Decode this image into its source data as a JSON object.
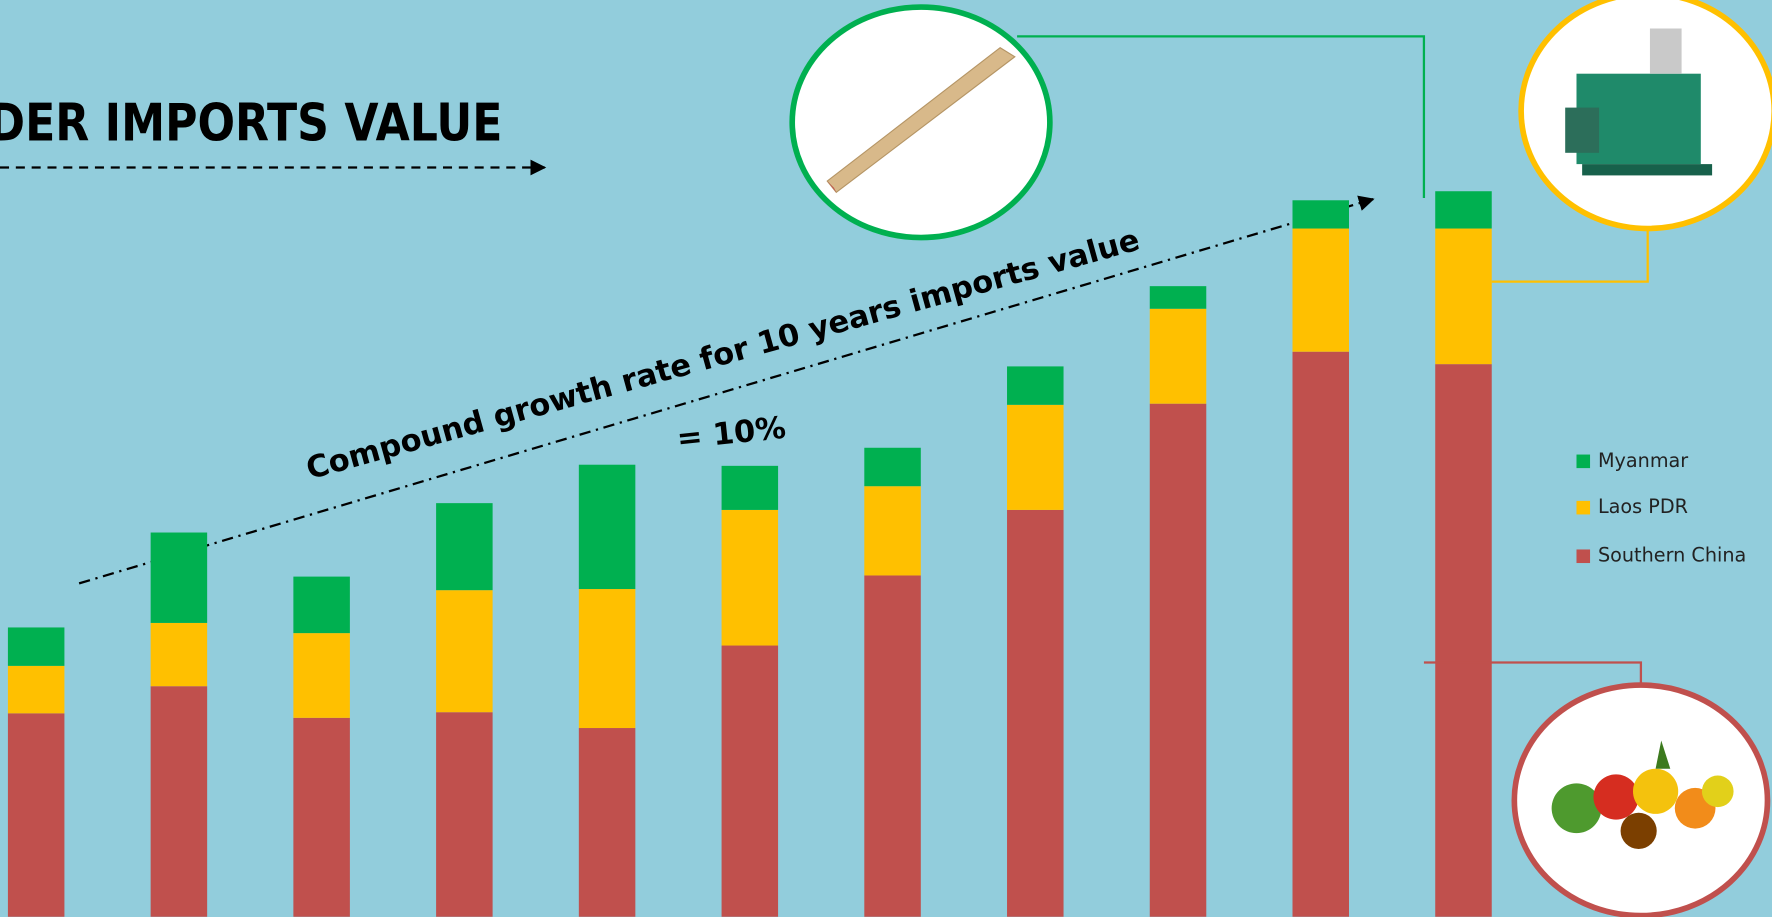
{
  "chart_data": {
    "type": "stacked_bar",
    "title": "RDER IMPORTS VALUE",
    "annotations": [
      "Compound growth rate for 10 years imports value",
      "= 10%"
    ],
    "categories": [
      null,
      null,
      null,
      null,
      null,
      null,
      null,
      null,
      null,
      null,
      null
    ],
    "series": [
      {
        "name": "Southern China",
        "color": "#c0504d",
        "values": [
          180,
          204,
          176,
          181,
          167,
          240,
          302,
          360,
          454,
          500,
          489
        ]
      },
      {
        "name": "Laos PDR",
        "color": "#ffc000",
        "values": [
          42,
          56,
          75,
          108,
          123,
          120,
          79,
          93,
          84,
          109,
          120
        ]
      },
      {
        "name": "Myanmar",
        "color": "#00b050",
        "values": [
          34,
          80,
          50,
          77,
          110,
          39,
          34,
          34,
          20,
          25,
          33
        ]
      }
    ],
    "legend": "right"
  }
}
